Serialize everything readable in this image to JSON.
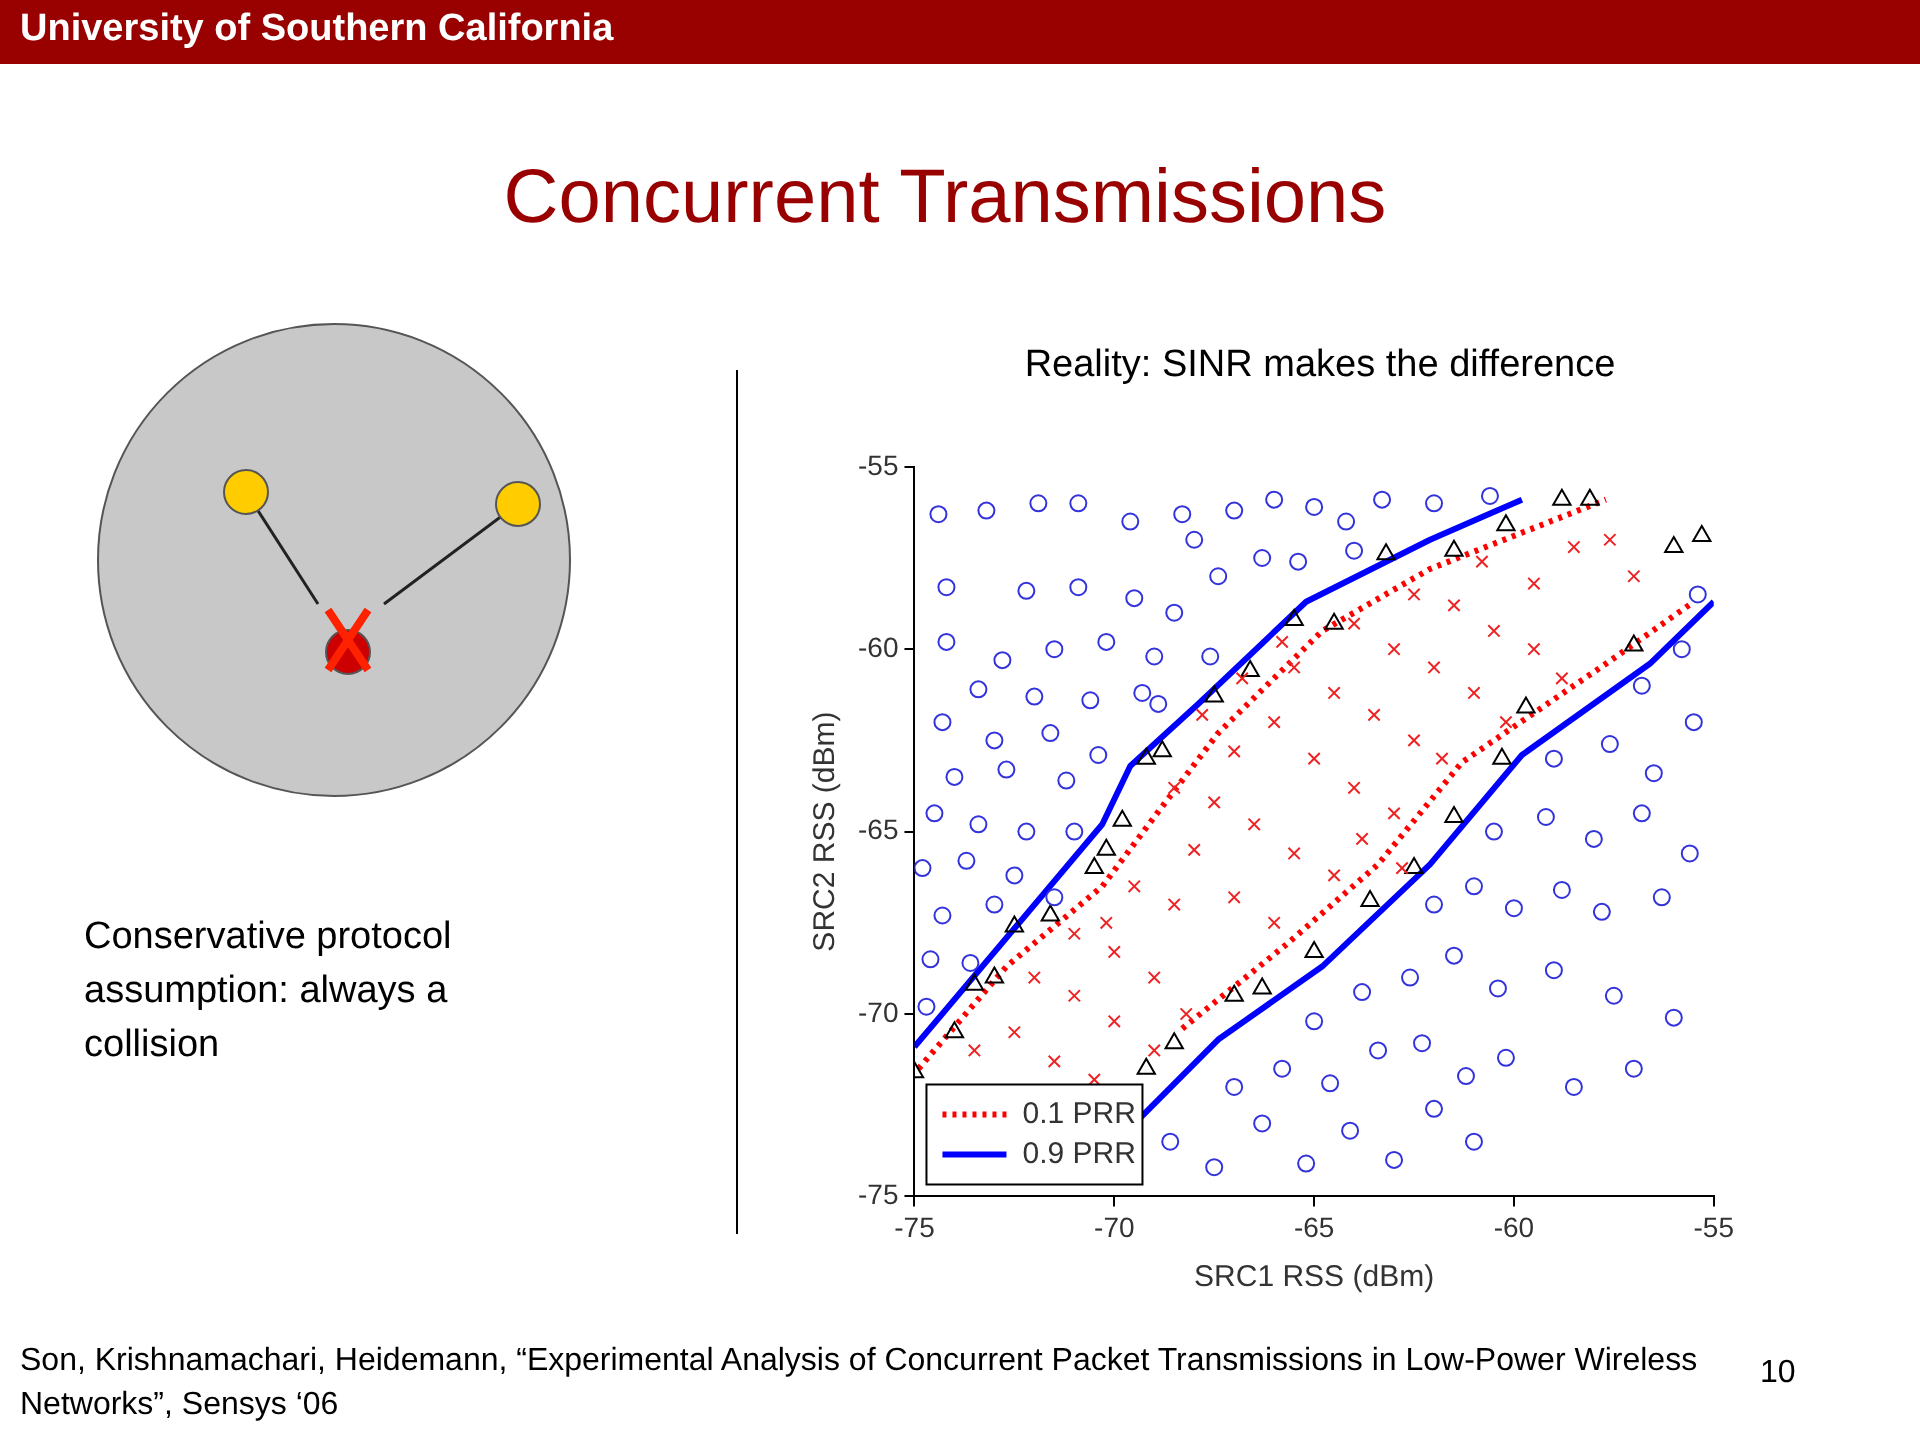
{
  "chart_data": {
    "type": "scatter",
    "title": "Concurrent Transmissions",
    "subtitle": "Reality: SINR makes the difference",
    "xlabel": "SRC1 RSS (dBm)",
    "ylabel": "SRC2 RSS (dBm)",
    "xlim": [
      -75,
      -55
    ],
    "xticks": [
      -75,
      -70,
      -65,
      -60,
      -55
    ],
    "ylim": [
      -75,
      -55
    ],
    "yticks": [
      -75,
      -70,
      -65,
      -60,
      -55
    ],
    "grid": false,
    "legend": "bottom left",
    "annotations": [
      "University of Southern California",
      "Conservative protocol assumption: always a collision",
      "Son, Krishnamachari, Heidemann, “Experimental Analysis of Concurrent Packet Transmissions in Low-Power Wireless Networks”, Sensys ‘06",
      "10"
    ],
    "series": [
      {
        "type": "scatter",
        "marker": "circle",
        "color": "#3333dd",
        "x": [
          -74.4,
          -73.2,
          -71.9,
          -70.9,
          -69.6,
          -68.3,
          -74.2,
          -72.2,
          -70.9,
          -69.5,
          -74.2,
          -72.8,
          -71.5,
          -70.2,
          -69.0,
          -73.4,
          -72.0,
          -70.6,
          -69.3,
          -74.3,
          -73.0,
          -71.6,
          -70.4,
          -74.0,
          -72.7,
          -71.2,
          -74.5,
          -73.4,
          -72.2,
          -71.0,
          -74.8,
          -73.7,
          -72.5,
          -74.3,
          -73.0,
          -71.5,
          -74.6,
          -73.6,
          -74.7,
          -68.0,
          -67.0,
          -66.0,
          -65.0,
          -64.2,
          -63.3,
          -62.0,
          -60.6,
          -67.4,
          -66.3,
          -65.4,
          -64.0,
          -68.5,
          -67.6,
          -68.9,
          -68.6,
          -67.5,
          -66.3,
          -65.2,
          -64.1,
          -63.0,
          -62.0,
          -61.0,
          -67.0,
          -65.8,
          -64.6,
          -63.4,
          -62.3,
          -61.2,
          -60.2,
          -58.5,
          -57.0,
          -65.0,
          -63.8,
          -62.6,
          -61.5,
          -60.4,
          -59.0,
          -57.5,
          -56.0,
          -62.0,
          -61.0,
          -60.0,
          -58.8,
          -57.8,
          -56.3,
          -60.5,
          -59.2,
          -58.0,
          -56.8,
          -55.6,
          -59.0,
          -57.6,
          -56.5,
          -55.5,
          -56.8,
          -55.8,
          -55.4
        ],
        "values": [
          -56.3,
          -56.2,
          -56.0,
          -56.0,
          -56.5,
          -56.3,
          -58.3,
          -58.4,
          -58.3,
          -58.6,
          -59.8,
          -60.3,
          -60.0,
          -59.8,
          -60.2,
          -61.1,
          -61.3,
          -61.4,
          -61.2,
          -62.0,
          -62.5,
          -62.3,
          -62.9,
          -63.5,
          -63.3,
          -63.6,
          -64.5,
          -64.8,
          -65.0,
          -65.0,
          -66.0,
          -65.8,
          -66.2,
          -67.3,
          -67.0,
          -66.8,
          -68.5,
          -68.6,
          -69.8,
          -57.0,
          -56.2,
          -55.9,
          -56.1,
          -56.5,
          -55.9,
          -56.0,
          -55.8,
          -58.0,
          -57.5,
          -57.6,
          -57.3,
          -59.0,
          -60.2,
          -61.5,
          -73.5,
          -74.2,
          -73.0,
          -74.1,
          -73.2,
          -74.0,
          -72.6,
          -73.5,
          -72.0,
          -71.5,
          -71.9,
          -71.0,
          -70.8,
          -71.7,
          -71.2,
          -72.0,
          -71.5,
          -70.2,
          -69.4,
          -69.0,
          -68.4,
          -69.3,
          -68.8,
          -69.5,
          -70.1,
          -67.0,
          -66.5,
          -67.1,
          -66.6,
          -67.2,
          -66.8,
          -65.0,
          -64.6,
          -65.2,
          -64.5,
          -65.6,
          -63.0,
          -62.6,
          -63.4,
          -62.0,
          -61.0,
          -60.0,
          -58.5
        ]
      },
      {
        "type": "scatter",
        "marker": "cross",
        "color": "#ee2222",
        "x": [
          -73.5,
          -72.5,
          -71.5,
          -70.5,
          -72.0,
          -71.0,
          -70.0,
          -69.0,
          -71.0,
          -70.0,
          -69.0,
          -68.5,
          -69.5,
          -68.0,
          -67.0,
          -66.0,
          -68.5,
          -67.5,
          -66.5,
          -65.5,
          -64.5,
          -67.0,
          -66.0,
          -65.0,
          -64.0,
          -63.0,
          -65.5,
          -64.5,
          -63.5,
          -62.5,
          -61.8,
          -64.0,
          -63.0,
          -62.0,
          -61.0,
          -60.2,
          -62.5,
          -61.5,
          -60.5,
          -59.5,
          -58.8,
          -58.5,
          -57.6,
          -57.0,
          -59.5,
          -60.8,
          -66.8,
          -65.8,
          -63.8,
          -62.8,
          -67.8,
          -70.2,
          -68.2
        ],
        "values": [
          -71.0,
          -70.5,
          -71.3,
          -71.8,
          -69.0,
          -69.5,
          -70.2,
          -71.0,
          -67.8,
          -68.3,
          -69.0,
          -67.0,
          -66.5,
          -65.5,
          -66.8,
          -67.5,
          -63.8,
          -64.2,
          -64.8,
          -65.6,
          -66.2,
          -62.8,
          -62.0,
          -63.0,
          -63.8,
          -64.5,
          -60.5,
          -61.2,
          -61.8,
          -62.5,
          -63.0,
          -59.3,
          -60.0,
          -60.5,
          -61.2,
          -62.0,
          -58.5,
          -58.8,
          -59.5,
          -60.0,
          -60.8,
          -57.2,
          -57.0,
          -58.0,
          -58.2,
          -57.6,
          -60.8,
          -59.8,
          -65.2,
          -66.0,
          -61.8,
          -67.5,
          -70.0
        ]
      },
      {
        "type": "scatter",
        "marker": "triangle",
        "color": "#000000",
        "x": [
          -75,
          -74.0,
          -73.5,
          -73.0,
          -72.5,
          -71.6,
          -70.5,
          -70.2,
          -69.8,
          -69.2,
          -68.8,
          -67.5,
          -66.6,
          -65.5,
          -64.5,
          -63.2,
          -61.5,
          -60.2,
          -58.8,
          -58.1,
          -69.2,
          -68.5,
          -67.0,
          -66.3,
          -65.0,
          -63.6,
          -62.5,
          -61.5,
          -60.3,
          -59.7,
          -57.0,
          -56.0,
          -55.3
        ],
        "values": [
          -71.6,
          -70.5,
          -69.2,
          -69.0,
          -67.6,
          -67.3,
          -66.0,
          -65.5,
          -64.7,
          -63.0,
          -62.8,
          -61.3,
          -60.6,
          -59.2,
          -59.3,
          -57.4,
          -57.3,
          -56.6,
          -55.9,
          -55.9,
          -71.5,
          -70.8,
          -69.5,
          -69.3,
          -68.3,
          -66.9,
          -66.0,
          -64.6,
          -63.0,
          -61.6,
          -59.9,
          -57.2,
          -56.9
        ]
      },
      {
        "type": "line",
        "name": "0.1 PRR",
        "color": "#ff0000",
        "line_style": "dotted",
        "x": [
          -74.9,
          -72.7,
          -70.3,
          -69.0,
          -67.4,
          -64.8,
          -62.1,
          -57.7,
          null,
          -68.3,
          -65.7,
          -63.4,
          -61.3,
          -57.7,
          -55.5
        ],
        "values": [
          -71.5,
          -68.7,
          -66.5,
          -64.6,
          -62.3,
          -59.5,
          -57.8,
          -55.9,
          null,
          -70.4,
          -68.1,
          -65.9,
          -63.1,
          -60.4,
          -58.7
        ]
      },
      {
        "type": "line",
        "name": "0.9 PRR",
        "color": "#0000ff",
        "line_style": "solid",
        "x": [
          -75,
          -70.3,
          -69.6,
          -67.9,
          -65.2,
          -62.1,
          -59.8,
          null,
          -69.4,
          -67.4,
          -64.8,
          -62.1,
          -59.8,
          -56.6,
          -55
        ],
        "values": [
          -70.9,
          -64.8,
          -63.2,
          -61.5,
          -58.7,
          -57.0,
          -55.9,
          null,
          -72.9,
          -70.7,
          -68.7,
          -65.9,
          -62.9,
          -60.4,
          -58.7
        ]
      }
    ]
  }
}
